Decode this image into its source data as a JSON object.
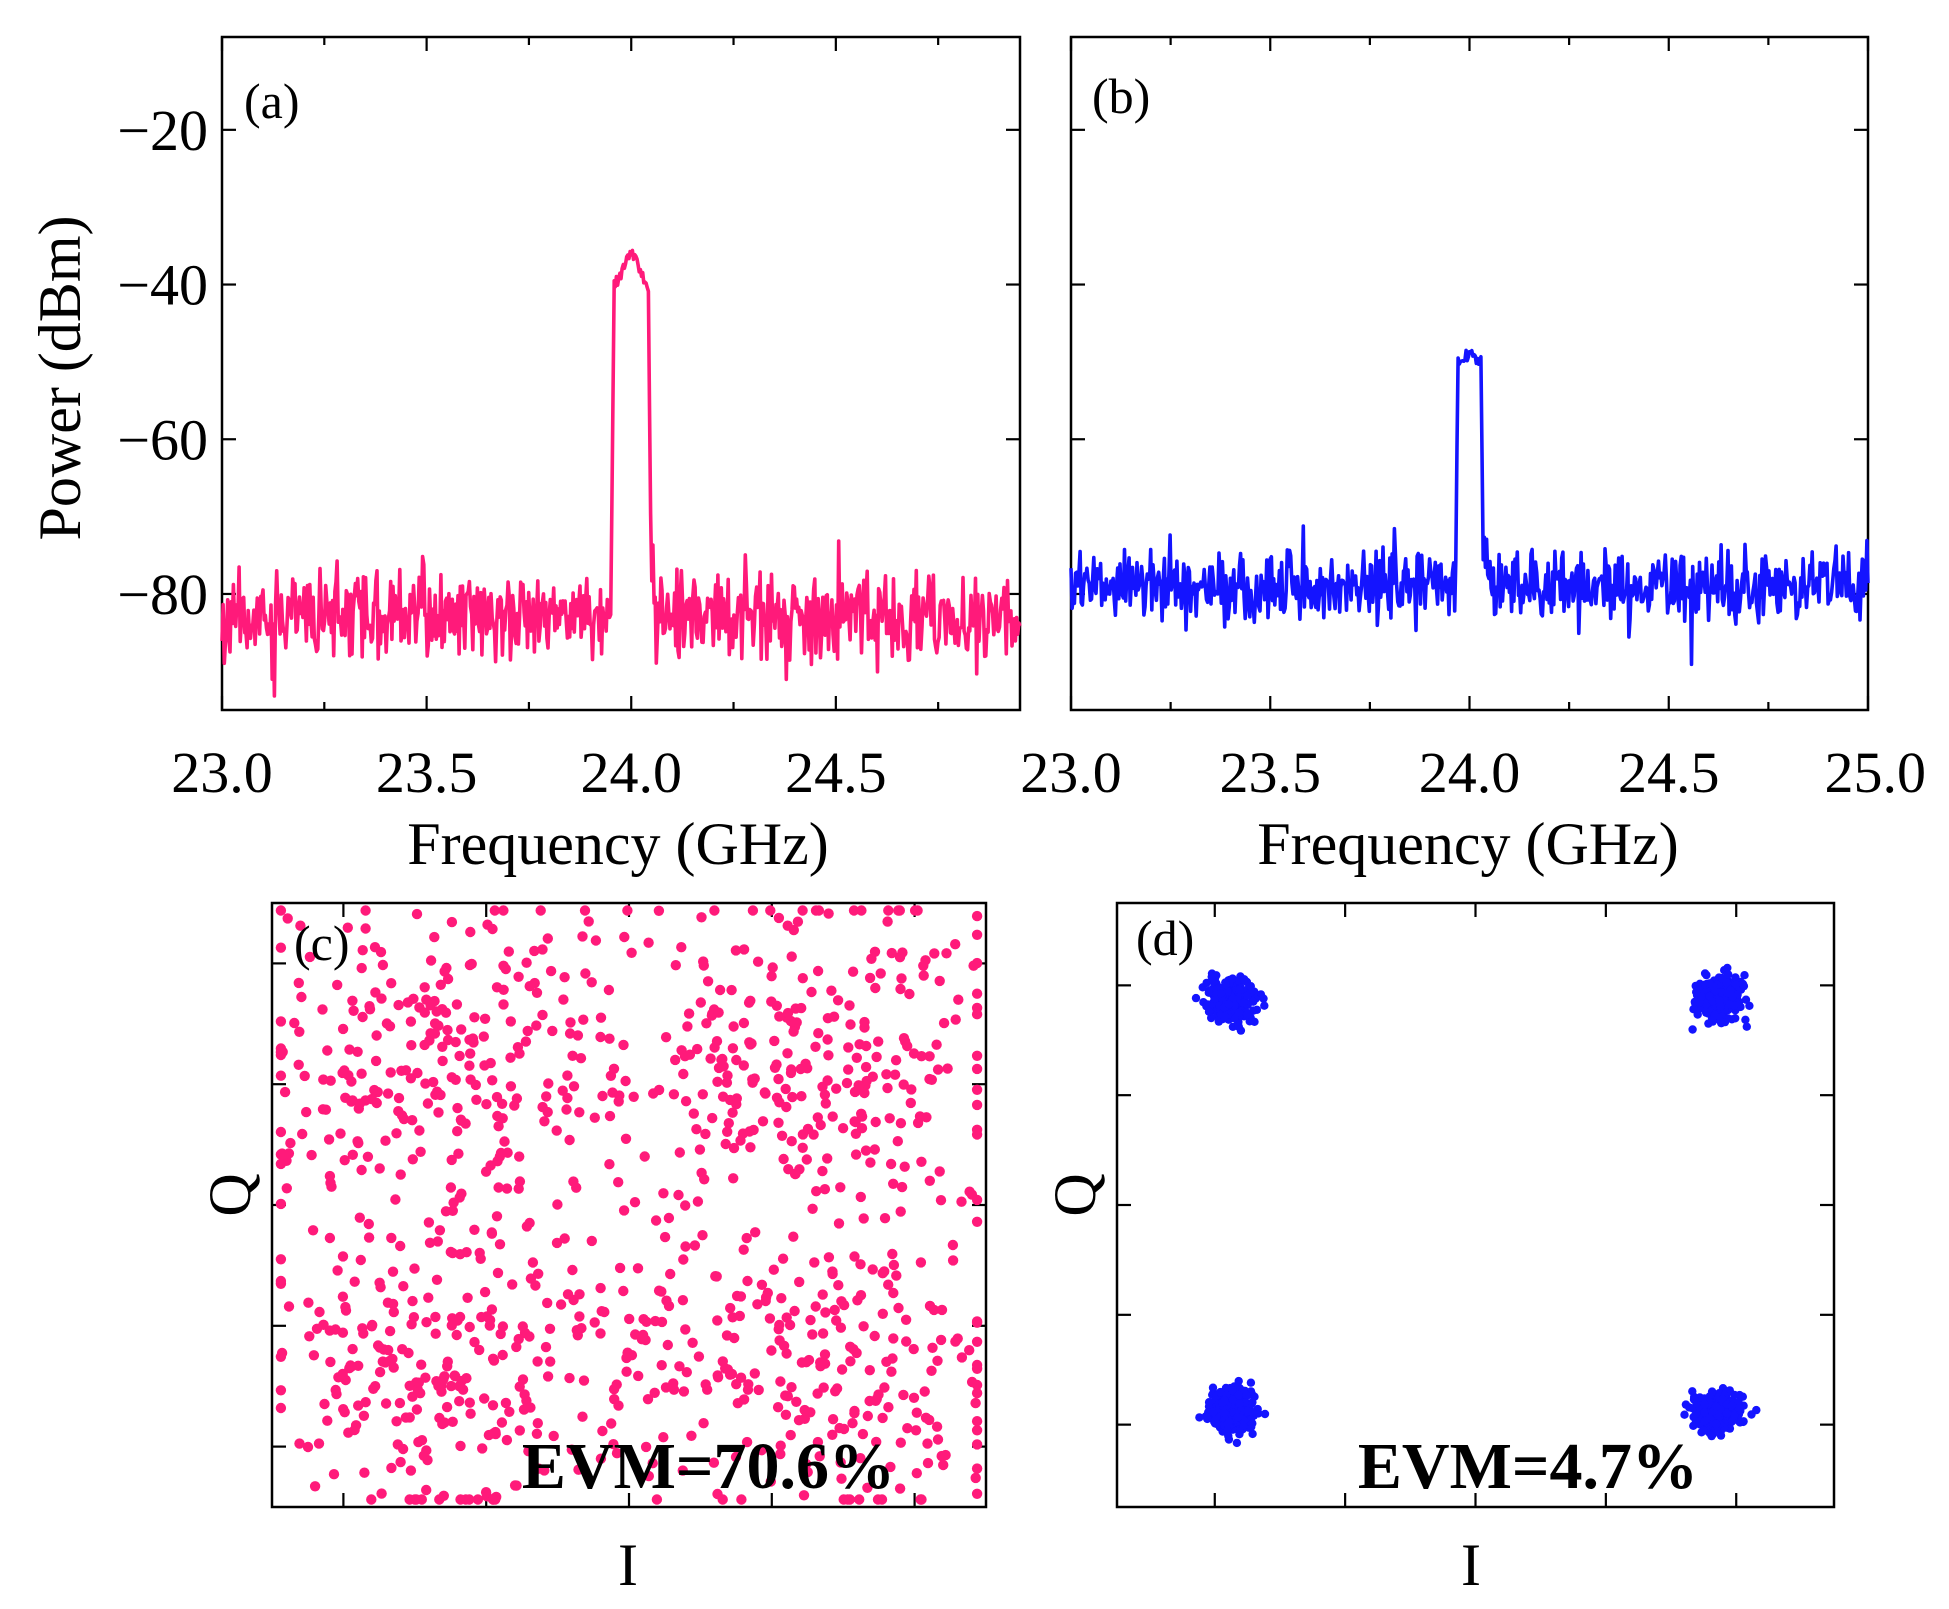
{
  "colors": {
    "pink": "#ff1a7a",
    "blue": "#1414ff"
  },
  "chart_data": [
    {
      "type": "line",
      "panel_label": "(a)",
      "xlabel": "Frequency (GHz)",
      "ylabel": "Power (dBm)",
      "xlim": [
        23.0,
        24.95
      ],
      "ylim": [
        -95,
        -8
      ],
      "xticks": [
        23.0,
        23.5,
        24.0,
        24.5
      ],
      "xticklabels": [
        "23.0",
        "23.5",
        "24.0",
        "24.5"
      ],
      "yticks": [
        -20,
        -40,
        -60,
        -80
      ],
      "yticklabels": [
        "−20",
        "−40",
        "−60",
        "−80"
      ],
      "color": "pink",
      "noise_floor": -83,
      "noise_spread": 6,
      "peak": {
        "center": 24.0,
        "width": 0.1,
        "level": -40,
        "max": -36
      }
    },
    {
      "type": "line",
      "panel_label": "(b)",
      "xlabel": "Frequency (GHz)",
      "ylabel": "",
      "xlim": [
        23.0,
        25.0
      ],
      "ylim": [
        -95,
        -8
      ],
      "xticks": [
        23.0,
        23.5,
        24.0,
        24.5,
        25.0
      ],
      "xticklabels": [
        "23.0",
        "23.5",
        "24.0",
        "24.5",
        "25.0"
      ],
      "yticks": [
        -20,
        -40,
        -60,
        -80
      ],
      "color": "blue",
      "noise_floor": -79,
      "noise_spread": 5,
      "peak": {
        "center": 24.0,
        "width": 0.07,
        "level": -50,
        "max": -49
      }
    },
    {
      "type": "scatter",
      "panel_label": "(c)",
      "xlabel": "I",
      "ylabel": "Q",
      "xlim": [
        -2.0,
        2.0
      ],
      "ylim": [
        -2.0,
        2.0
      ],
      "color": "pink",
      "annotation": "EVM=70.6%",
      "constellation": "QPSK",
      "symbol_points": [
        [
          -1,
          1
        ],
        [
          1,
          1
        ],
        [
          -1,
          -1
        ],
        [
          1,
          -1
        ]
      ],
      "point_count": 1100,
      "noise_std": 0.55
    },
    {
      "type": "scatter",
      "panel_label": "(d)",
      "xlabel": "I",
      "ylabel": "Q",
      "xlim": [
        -2.2,
        2.2
      ],
      "ylim": [
        -2.2,
        2.2
      ],
      "color": "blue",
      "annotation": "EVM=4.7%",
      "constellation": "QPSK",
      "symbol_points": [
        [
          -1.5,
          1.5
        ],
        [
          1.5,
          1.5
        ],
        [
          -1.5,
          -1.5
        ],
        [
          1.5,
          -1.5
        ]
      ],
      "point_count": 1100,
      "noise_std": 0.075
    }
  ]
}
